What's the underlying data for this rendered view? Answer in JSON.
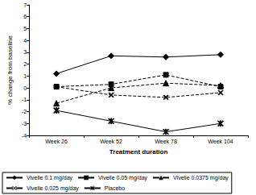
{
  "chart_data": {
    "type": "line",
    "x_label": "Treatment duration",
    "y_label": "% change from baseline",
    "categories": [
      "Week 26",
      "Week 52",
      "Week 78",
      "Week 104"
    ],
    "series": [
      {
        "name": "Vivelle 0.1 mg/day",
        "color": "#000000",
        "marker": "diamond",
        "line_style": "solid",
        "values": [
          1.2,
          2.7,
          2.6,
          2.8
        ]
      },
      {
        "name": "Vivelle 0.05 mg/day",
        "color": "#000000",
        "marker": "square",
        "line_style": "dashed",
        "values": [
          0.1,
          0.3,
          1.1,
          0.1
        ]
      },
      {
        "name": "Vivelle 0.0375 mg/day",
        "color": "#000000",
        "marker": "triangle",
        "line_style": "dashed",
        "values": [
          -1.3,
          0.0,
          0.4,
          0.2
        ]
      },
      {
        "name": "Vivelle 0.025 mg/day",
        "color": "#000000",
        "marker": "x",
        "line_style": "dashed",
        "values": [
          0.1,
          -0.6,
          -0.8,
          -0.4
        ]
      },
      {
        "name": "Placebo",
        "color": "#000000",
        "marker": "star",
        "line_style": "solid",
        "values": [
          -1.9,
          -2.8,
          -3.7,
          -3.0
        ]
      }
    ],
    "ylim": [
      -4,
      7
    ],
    "yticks": [
      -4,
      -3,
      -2,
      -1,
      0,
      1,
      2,
      3,
      4,
      5,
      6,
      7
    ],
    "grid": false,
    "legend": "bottom"
  }
}
